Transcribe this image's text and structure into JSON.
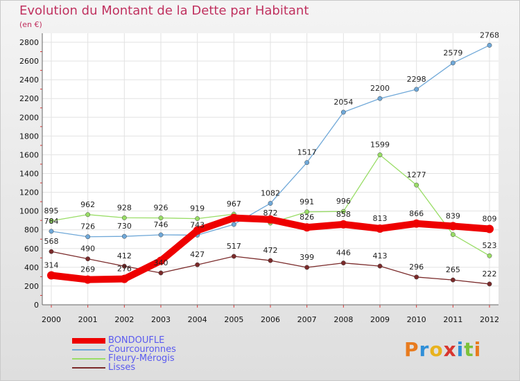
{
  "title": "Evolution du Montant de la Dette par Habitant",
  "unit": "(en €)",
  "logo_text": "Proxiti",
  "chart_data": {
    "type": "line",
    "x": [
      "2000",
      "2001",
      "2002",
      "2003",
      "2004",
      "2005",
      "2006",
      "2007",
      "2008",
      "2009",
      "2010",
      "2011",
      "2012"
    ],
    "ylim": [
      0,
      2800
    ],
    "yticks": [
      0,
      200,
      400,
      600,
      800,
      1000,
      1200,
      1400,
      1600,
      1800,
      2000,
      2200,
      2400,
      2600,
      2800
    ],
    "grid": true,
    "legend_position": "bottom-left",
    "series": [
      {
        "name": "BONDOUFLE",
        "color": "#ee0000",
        "values": [
          314,
          269,
          276,
          470,
          792,
          926,
          910,
          826,
          858,
          813,
          866,
          839,
          809
        ]
      },
      {
        "name": "Courcouronnes",
        "color": "#6fa8d8",
        "values": [
          784,
          726,
          730,
          746,
          743,
          857,
          1082,
          1517,
          2054,
          2200,
          2298,
          2579,
          2768
        ]
      },
      {
        "name": "Fleury-Mérogis",
        "color": "#99dd66",
        "values": [
          895,
          962,
          928,
          926,
          919,
          967,
          872,
          991,
          996,
          1599,
          1277,
          749,
          523
        ]
      },
      {
        "name": "Lisses",
        "color": "#7a2a2a",
        "values": [
          568,
          490,
          412,
          340,
          427,
          517,
          472,
          399,
          446,
          413,
          296,
          265,
          222
        ]
      }
    ],
    "data_labels": {
      "BONDOUFLE": [
        "314",
        "269",
        "276",
        "",
        "",
        "",
        "",
        "826",
        "858",
        "813",
        "866",
        "839",
        "809"
      ],
      "Courcouronnes": [
        "784",
        "726",
        "730",
        "746",
        "743",
        "",
        "1082",
        "1517",
        "2054",
        "2200",
        "2298",
        "2579",
        "2768"
      ],
      "Fleury-Mérogis": [
        "895",
        "962",
        "928",
        "926",
        "919",
        "967",
        "872",
        "991",
        "996",
        "1599",
        "1277",
        "",
        "523"
      ],
      "Lisses": [
        "568",
        "490",
        "412",
        "340",
        "427",
        "517",
        "472",
        "399",
        "446",
        "413",
        "296",
        "265",
        "222"
      ]
    }
  }
}
